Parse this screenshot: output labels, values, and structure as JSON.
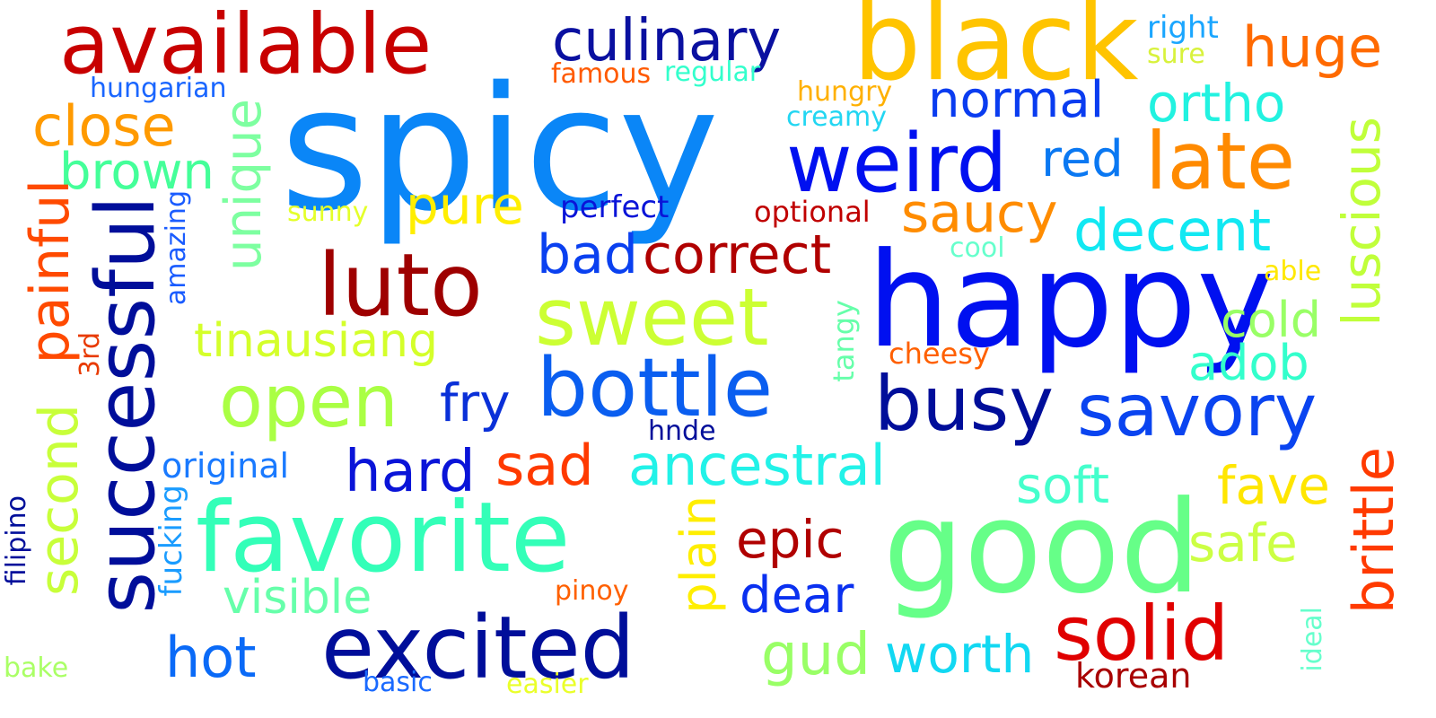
{
  "words": {
    "spicy": {
      "text": "spicy",
      "color": "#0a86f7"
    },
    "black": {
      "text": "black",
      "color": "#ffc400"
    },
    "available": {
      "text": "available",
      "color": "#c80000"
    },
    "culinary": {
      "text": "culinary",
      "color": "#0a10a0"
    },
    "huge": {
      "text": "huge",
      "color": "#ff6a00"
    },
    "right": {
      "text": "right",
      "color": "#1aa6ff"
    },
    "sure": {
      "text": "sure",
      "color": "#d8f23c"
    },
    "famous": {
      "text": "famous",
      "color": "#ff5a00"
    },
    "regular": {
      "text": "regular",
      "color": "#33ffcc"
    },
    "hungarian": {
      "text": "hungarian",
      "color": "#1a66ff"
    },
    "hungry": {
      "text": "hungry",
      "color": "#ffb000"
    },
    "creamy": {
      "text": "creamy",
      "color": "#22d6f2"
    },
    "normal": {
      "text": "normal",
      "color": "#0a3cf0"
    },
    "ortho": {
      "text": "ortho",
      "color": "#22f2e0"
    },
    "close": {
      "text": "close",
      "color": "#ff9a00"
    },
    "weird": {
      "text": "weird",
      "color": "#0010f0"
    },
    "late": {
      "text": "late",
      "color": "#ff8a00"
    },
    "luscious": {
      "text": "luscious",
      "color": "#c0ff3a"
    },
    "brown": {
      "text": "brown",
      "color": "#44ff99"
    },
    "unique": {
      "text": "unique",
      "color": "#7dffa0"
    },
    "red": {
      "text": "red",
      "color": "#0a78f2"
    },
    "painful": {
      "text": "painful",
      "color": "#ff4a00"
    },
    "successful": {
      "text": "successful",
      "color": "#000e9a"
    },
    "sunny": {
      "text": "sunny",
      "color": "#e4ff2a"
    },
    "pure": {
      "text": "pure",
      "color": "#ffee00"
    },
    "perfect": {
      "text": "perfect",
      "color": "#0a14d8"
    },
    "optional": {
      "text": "optional",
      "color": "#c00000"
    },
    "saucy": {
      "text": "saucy",
      "color": "#ff8c00"
    },
    "decent": {
      "text": "decent",
      "color": "#12e8f2"
    },
    "amazing": {
      "text": "amazing",
      "color": "#1a5cff"
    },
    "luto": {
      "text": "luto",
      "color": "#9e0000"
    },
    "bad": {
      "text": "bad",
      "color": "#0a40f0"
    },
    "correct": {
      "text": "correct",
      "color": "#b00000"
    },
    "happy": {
      "text": "happy",
      "color": "#0010f0"
    },
    "cool": {
      "text": "cool",
      "color": "#66ffcc"
    },
    "able": {
      "text": "able",
      "color": "#ffe800"
    },
    "sweet": {
      "text": "sweet",
      "color": "#ccff33"
    },
    "tinausiang": {
      "text": "tinausiang",
      "color": "#d4ff2a"
    },
    "tangy": {
      "text": "tangy",
      "color": "#66ffaa"
    },
    "cold": {
      "text": "cold",
      "color": "#99ff66"
    },
    "3rd": {
      "text": "3rd",
      "color": "#e83a00"
    },
    "cheesy": {
      "text": "cheesy",
      "color": "#ff6000"
    },
    "adob": {
      "text": "adob",
      "color": "#33ffcc"
    },
    "second": {
      "text": "second",
      "color": "#c8ff3a"
    },
    "open": {
      "text": "open",
      "color": "#aaff44"
    },
    "bottle": {
      "text": "bottle",
      "color": "#0a5ef0"
    },
    "fry": {
      "text": "fry",
      "color": "#0a30d8"
    },
    "busy": {
      "text": "busy",
      "color": "#000e9a"
    },
    "savory": {
      "text": "savory",
      "color": "#0a44f0"
    },
    "hnde": {
      "text": "hnde",
      "color": "#000e9a"
    },
    "original": {
      "text": "original",
      "color": "#1a7aff"
    },
    "hard": {
      "text": "hard",
      "color": "#0a14d8"
    },
    "sad": {
      "text": "sad",
      "color": "#ff3a00"
    },
    "ancestral": {
      "text": "ancestral",
      "color": "#22f2e8"
    },
    "soft": {
      "text": "soft",
      "color": "#44ffcc"
    },
    "fave": {
      "text": "fave",
      "color": "#ffe600"
    },
    "brittle": {
      "text": "brittle",
      "color": "#ff3a00"
    },
    "filipino": {
      "text": "filipino",
      "color": "#000e9a"
    },
    "fucking": {
      "text": "fucking",
      "color": "#1a9cff"
    },
    "favorite": {
      "text": "favorite",
      "color": "#33ffb8"
    },
    "plain": {
      "text": "plain",
      "color": "#ffee00"
    },
    "epic": {
      "text": "epic",
      "color": "#b00000"
    },
    "good": {
      "text": "good",
      "color": "#66ff88"
    },
    "safe": {
      "text": "safe",
      "color": "#ccff44"
    },
    "visible": {
      "text": "visible",
      "color": "#66ffaa"
    },
    "pinoy": {
      "text": "pinoy",
      "color": "#ff6000"
    },
    "dear": {
      "text": "dear",
      "color": "#0a30f0"
    },
    "solid": {
      "text": "solid",
      "color": "#e00000"
    },
    "hot": {
      "text": "hot",
      "color": "#0a6af7"
    },
    "excited": {
      "text": "excited",
      "color": "#000e9a"
    },
    "gud": {
      "text": "gud",
      "color": "#99ff66"
    },
    "worth": {
      "text": "worth",
      "color": "#12d8f2"
    },
    "korean": {
      "text": "korean",
      "color": "#a80000"
    },
    "ideal": {
      "text": "ideal",
      "color": "#66ffcc"
    },
    "bake": {
      "text": "bake",
      "color": "#aaff66"
    },
    "basic": {
      "text": "basic",
      "color": "#1a6aff"
    },
    "easier": {
      "text": "easier",
      "color": "#eaff2a"
    }
  }
}
